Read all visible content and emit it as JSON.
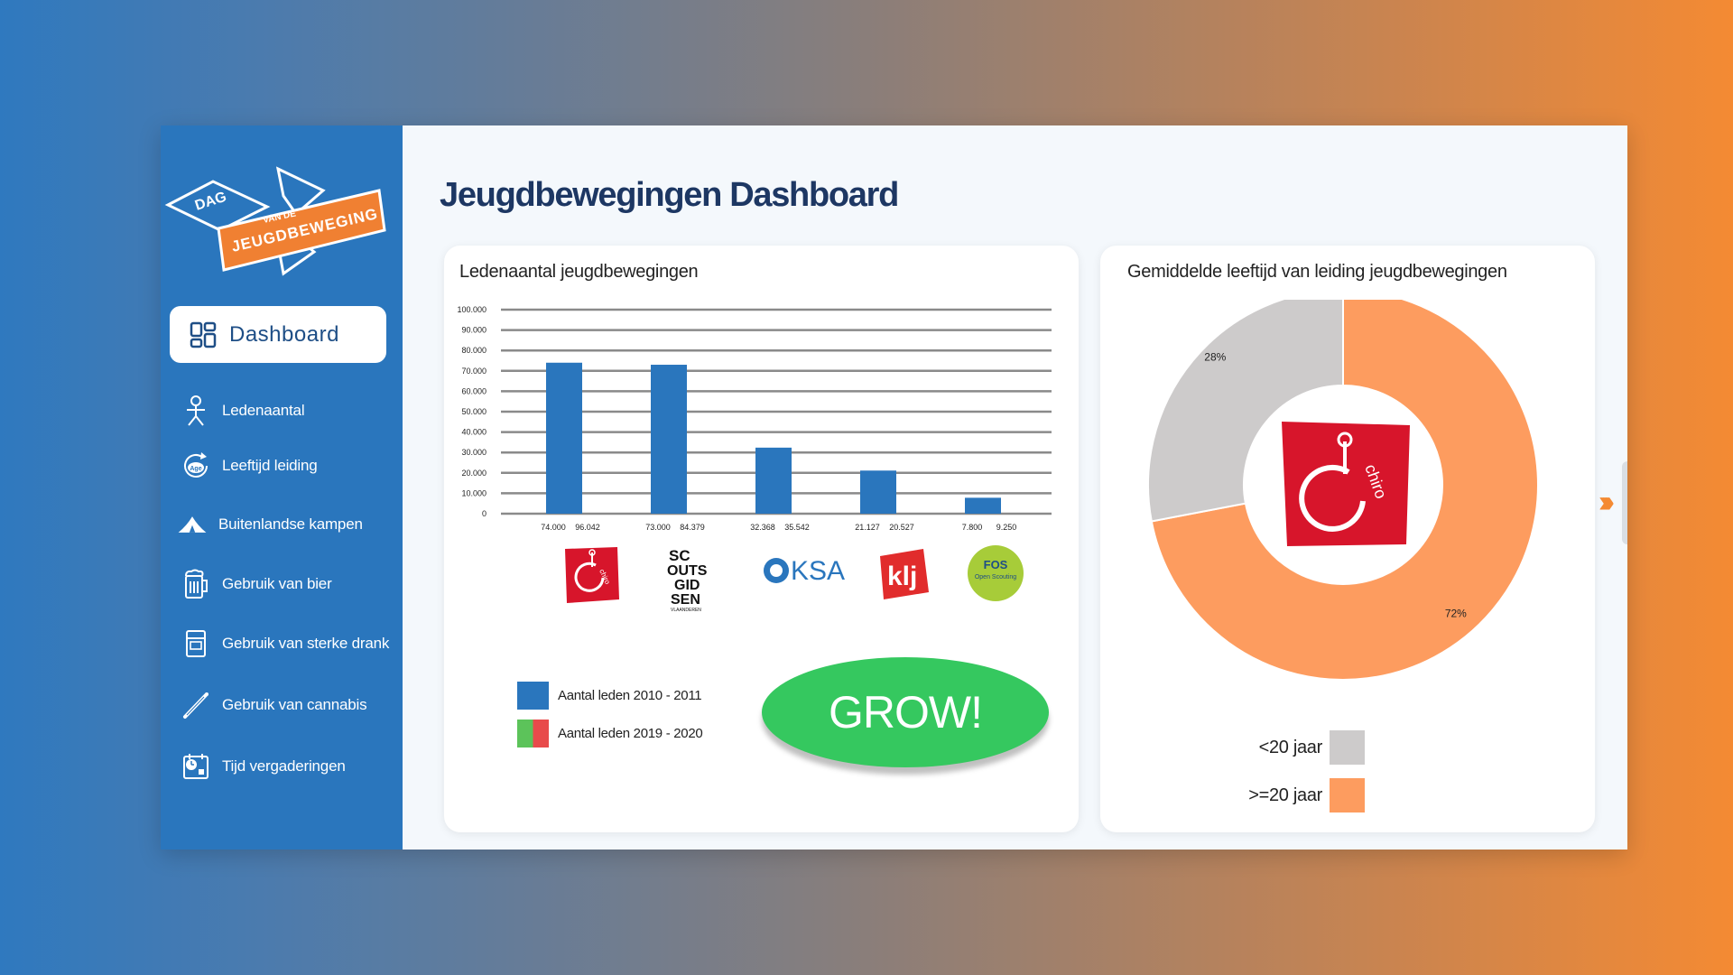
{
  "logo": {
    "text_dag": "DAG",
    "text_vande": "VAN DE",
    "text_main": "JEUGDBEWEGING"
  },
  "sidebar": {
    "dashboard_label": "Dashboard",
    "items": [
      {
        "label": "Ledenaantal",
        "icon": "person-icon"
      },
      {
        "label": "Leeftijd leiding",
        "icon": "age-icon"
      },
      {
        "label": "Buitenlandse kampen",
        "icon": "tent-icon"
      },
      {
        "label": "Gebruik van bier",
        "icon": "beer-icon"
      },
      {
        "label": "Gebruik van sterke drank",
        "icon": "bottle-icon"
      },
      {
        "label": "Gebruik van cannabis",
        "icon": "joint-icon"
      },
      {
        "label": "Tijd vergaderingen",
        "icon": "clock-calendar-icon"
      }
    ]
  },
  "page_title": "Jeugdbewegingen Dashboard",
  "bar_card": {
    "title": "Ledenaantal jeugdbewegingen",
    "legend": [
      {
        "label": "Aantal leden 2010 - 2011",
        "color": "#2a76bd"
      },
      {
        "label": "Aantal leden 2019 - 2020",
        "colors": [
          "#5cc35a",
          "#e84b4b"
        ]
      }
    ],
    "grow_label": "GROW!",
    "logos": [
      "chiro",
      "scouts en gidsen vlaanderen",
      "KSA",
      "klj",
      "FOS Open Scouting"
    ],
    "logo_texts": {
      "scouts": [
        "SC",
        "OUTS",
        "GID",
        "SEN",
        "VLAANDEREN"
      ],
      "ksa": "KSA",
      "klj": "klj",
      "fos": [
        "FOS",
        "Open Scouting"
      ],
      "chiro": "chiro"
    }
  },
  "chart_data": [
    {
      "type": "bar",
      "title": "Ledenaantal jeugdbewegingen",
      "y_ticks": [
        "100.000",
        "90.000",
        "80.000",
        "70.000",
        "60.000",
        "50.000",
        "40.000",
        "30.000",
        "20.000",
        "10.000",
        "0"
      ],
      "categories": [
        "Chiro",
        "Scouts en Gidsen Vlaanderen",
        "KSA",
        "KLJ",
        "FOS Open Scouting"
      ],
      "series": [
        {
          "name": "Aantal leden 2010 - 2011",
          "values": [
            74000,
            73000,
            32368,
            21127,
            7800
          ],
          "labels": [
            "74.000",
            "73.000",
            "32.368",
            "21.127",
            "7.800"
          ],
          "color": "#2a76bd"
        },
        {
          "name": "Aantal leden 2019 - 2020",
          "values": [
            96042,
            84379,
            35542,
            20527,
            9250
          ],
          "labels": [
            "96.042",
            "84.379",
            "35.542",
            "20.527",
            "9.250"
          ]
        }
      ],
      "ylim": [
        0,
        100000
      ],
      "grid": true
    },
    {
      "type": "pie",
      "title": "Gemiddelde leeftijd van leiding jeugdbewegingen",
      "slices": [
        {
          "name": "<20 jaar",
          "value": 28,
          "label": "28%",
          "color": "#cdcbcb"
        },
        {
          "name": ">=20 jaar",
          "value": 72,
          "label": "72%",
          "color": "#fd9c5f"
        }
      ],
      "center_logo": "chiro"
    }
  ],
  "next_icon": "triple-chevron-right-icon"
}
